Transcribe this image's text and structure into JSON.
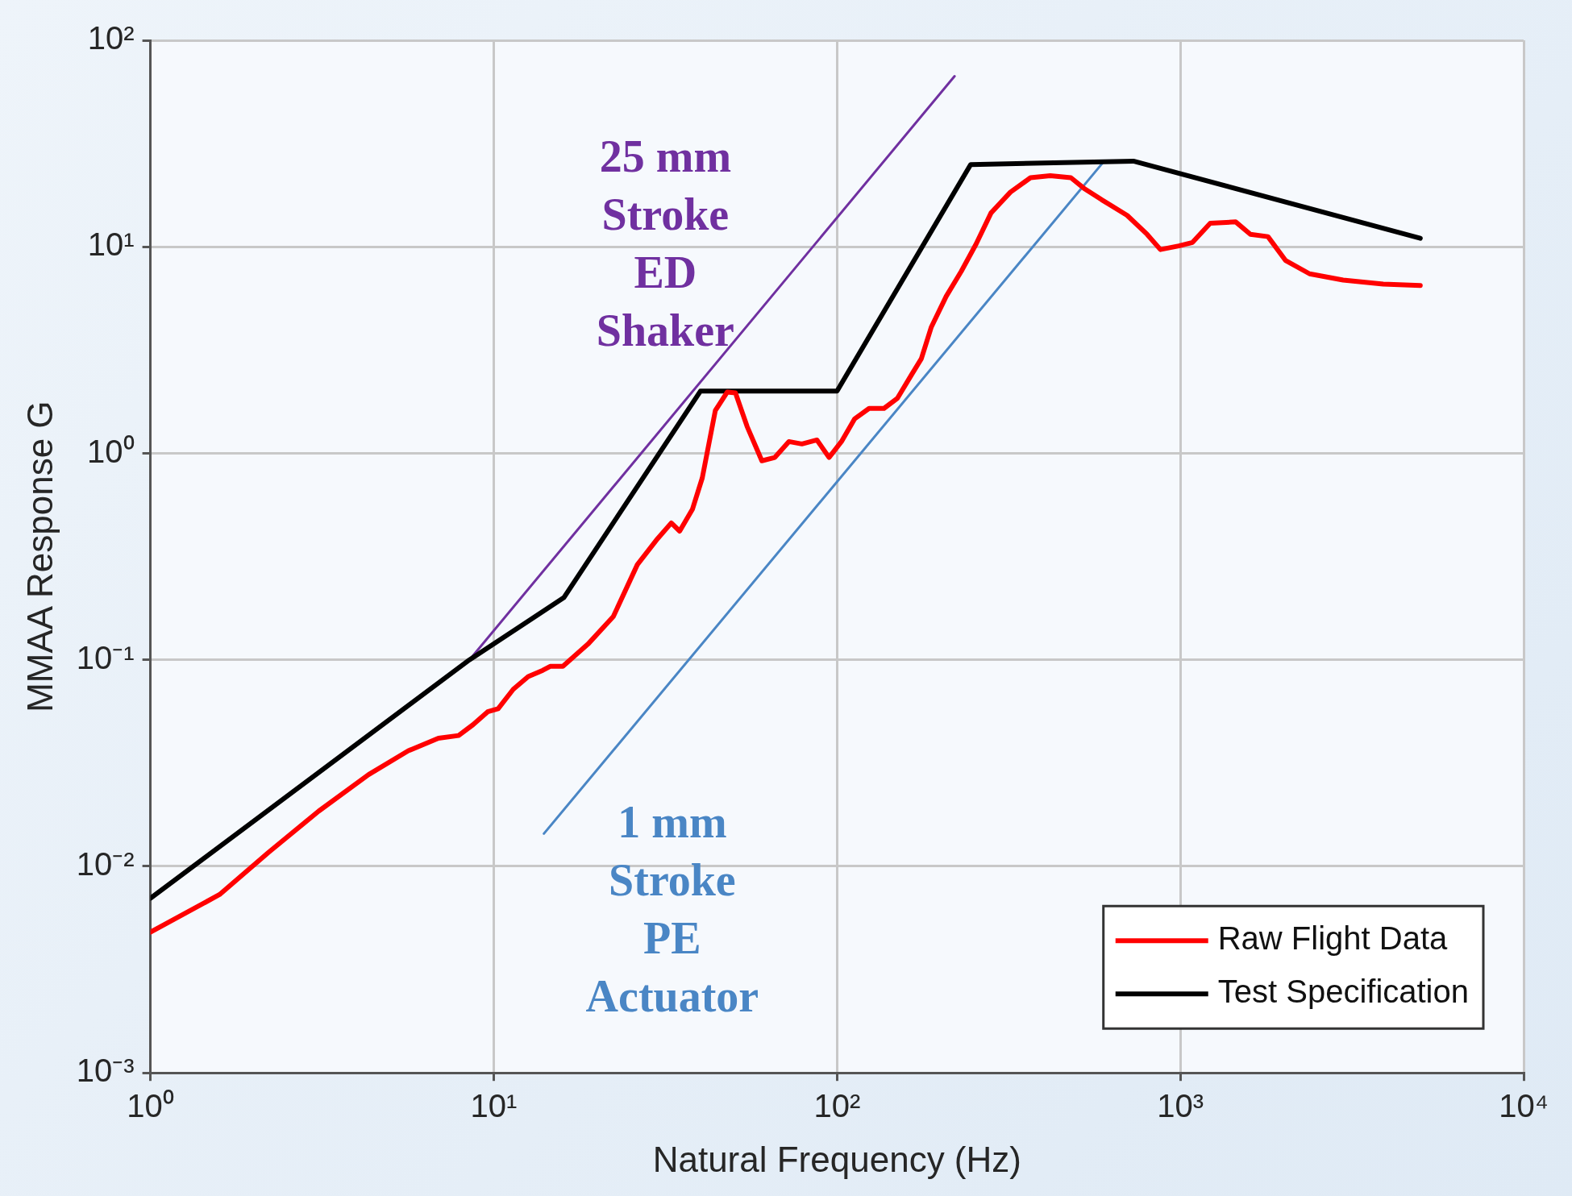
{
  "chart_data": {
    "type": "line",
    "xlabel": "Natural Frequency (Hz)",
    "ylabel": "MMAA Response G",
    "log": "xy",
    "grid": true,
    "legend": "bottom right",
    "marker": "none",
    "line_style": "solid",
    "xlim": [
      1,
      10000
    ],
    "ylim": [
      0.001,
      100
    ],
    "xticks": [
      {
        "value": 1,
        "label": "10⁰"
      },
      {
        "value": 10,
        "label": "10¹"
      },
      {
        "value": 100,
        "label": "10²"
      },
      {
        "value": 1000,
        "label": "10³"
      },
      {
        "value": 10000,
        "label": "10⁴"
      }
    ],
    "yticks": [
      {
        "value": 0.001,
        "label": "10⁻³"
      },
      {
        "value": 0.01,
        "label": "10⁻²"
      },
      {
        "value": 0.1,
        "label": "10⁻¹"
      },
      {
        "value": 1,
        "label": "10⁰"
      },
      {
        "value": 10,
        "label": "10¹"
      },
      {
        "value": 100,
        "label": "10²"
      }
    ],
    "series": [
      {
        "name": "Raw Flight Data",
        "color": "#ff0000",
        "x": [
          1,
          1.59,
          2.21,
          3.09,
          4.32,
          5.64,
          6.9,
          7.9,
          8.7,
          9.6,
          10.3,
          11.4,
          12.6,
          13.9,
          14.6,
          15.9,
          18.8,
          22.3,
          26.2,
          30,
          32.9,
          34.8,
          37.9,
          40.5,
          44.2,
          47.9,
          50.6,
          54.7,
          60.4,
          65.9,
          72.4,
          79,
          87.4,
          94.8,
          103,
          112.6,
          124,
          137,
          150,
          165,
          176,
          188,
          208,
          230,
          254,
          281,
          320,
          366,
          418,
          480,
          524,
          590,
          700,
          800,
          875,
          990,
          1085,
          1222,
          1450,
          1600,
          1800,
          2024,
          2380,
          2980,
          3900,
          5000
        ],
        "values": [
          0.0048,
          0.0073,
          0.0117,
          0.0185,
          0.0278,
          0.0363,
          0.0417,
          0.043,
          0.0485,
          0.056,
          0.058,
          0.072,
          0.083,
          0.089,
          0.093,
          0.093,
          0.119,
          0.162,
          0.289,
          0.386,
          0.46,
          0.42,
          0.535,
          0.76,
          1.61,
          1.98,
          1.96,
          1.35,
          0.92,
          0.955,
          1.14,
          1.11,
          1.16,
          0.955,
          1.14,
          1.47,
          1.65,
          1.65,
          1.85,
          2.41,
          2.87,
          4.07,
          5.76,
          7.6,
          10.3,
          14.6,
          18.4,
          21.6,
          22.1,
          21.6,
          19.2,
          16.9,
          14.2,
          11.5,
          9.7,
          10.1,
          10.5,
          13,
          13.2,
          11.5,
          11.2,
          8.6,
          7.4,
          6.9,
          6.6,
          6.5
        ]
      },
      {
        "name": "Test Specification",
        "color": "#000000",
        "x": [
          1,
          8.5,
          16,
          40,
          100,
          245,
          730,
          5000
        ],
        "values": [
          0.007,
          0.1,
          0.2,
          2,
          2,
          25,
          26,
          11
        ]
      },
      {
        "color": "#7030a0",
        "x": [
          8.5,
          220
        ],
        "values": [
          0.1,
          67
        ]
      },
      {
        "color": "#4a86c5",
        "x": [
          14,
          600
        ],
        "values": [
          0.0144,
          26
        ]
      }
    ],
    "annotations": [
      "25 mm\nStroke\nED\nShaker",
      "1 mm\nStroke\nPE\nActuator"
    ]
  }
}
